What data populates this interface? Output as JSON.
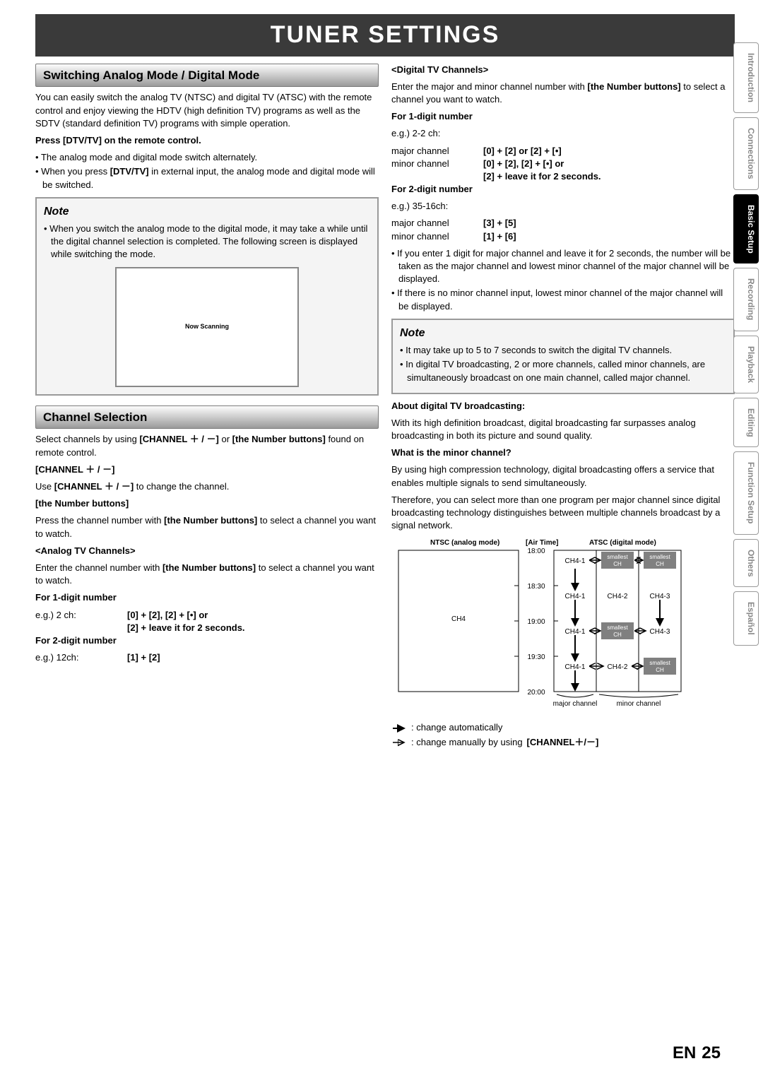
{
  "title": "TUNER SETTINGS",
  "page": {
    "lang": "EN",
    "num": "25"
  },
  "side_tabs": [
    {
      "label": "Introduction",
      "active": false
    },
    {
      "label": "Connections",
      "active": false
    },
    {
      "label": "Basic Setup",
      "active": true
    },
    {
      "label": "Recording",
      "active": false
    },
    {
      "label": "Playback",
      "active": false
    },
    {
      "label": "Editing",
      "active": false
    },
    {
      "label": "Function Setup",
      "active": false
    },
    {
      "label": "Others",
      "active": false
    },
    {
      "label": "Español",
      "active": false
    }
  ],
  "left": {
    "sec1_title": "Switching Analog Mode / Digital Mode",
    "sec1_intro": "You can easily switch the analog TV (NTSC) and digital TV (ATSC) with the remote control and enjoy viewing the HDTV (high definition TV) programs as well as the SDTV (standard definition TV) programs with simple operation.",
    "press_h": "Press [DTV/TV] on the remote control.",
    "press_b1": "The analog mode and digital mode switch alternately.",
    "press_b2_a": "When you press ",
    "press_b2_b": "[DTV/TV]",
    "press_b2_c": " in external input, the analog mode and digital mode will be switched.",
    "note1_title": "Note",
    "note1_text": "When you switch the analog mode to the digital mode, it may take a while until the digital channel selection is completed. The following screen is displayed while switching the mode.",
    "scan_label": "Now Scanning",
    "sec2_title": "Channel Selection",
    "sec2_intro_a": "Select channels by using ",
    "sec2_intro_b": "[CHANNEL ＋ / －]",
    "sec2_intro_c": " or ",
    "sec2_intro_d": "[the Number buttons]",
    "sec2_intro_e": " found on remote control.",
    "ch_h": "[CHANNEL ＋ / －]",
    "ch_t_a": "Use ",
    "ch_t_b": "[CHANNEL ＋ / －]",
    "ch_t_c": " to change the channel.",
    "nb_h": "[the Number buttons]",
    "nb_t_a": "Press the channel number with ",
    "nb_t_b": "[the Number buttons]",
    "nb_t_c": " to select a channel you want to watch.",
    "atv_h": "<Analog TV Channels>",
    "atv_t_a": "Enter the channel number with ",
    "atv_t_b": "[the Number buttons]",
    "atv_t_c": " to select a channel you want to watch.",
    "f1_h": "For 1-digit number",
    "f1_eg": "e.g.) 2 ch:",
    "f1_v1": "[0] + [2], [2] + [•] or",
    "f1_v2": "[2] + leave it for 2 seconds.",
    "f2_h": "For 2-digit number",
    "f2_eg": "e.g.) 12ch:",
    "f2_v": "[1] + [2]"
  },
  "right": {
    "dtv_h": "<Digital TV Channels>",
    "dtv_t_a": "Enter the major and minor channel number with ",
    "dtv_t_b": "[the Number buttons]",
    "dtv_t_c": " to select a channel you want to watch.",
    "d1_h": "For 1-digit number",
    "d1_eg": "e.g.) 2-2 ch:",
    "d1_maj_k": "major channel",
    "d1_maj_v": "[0] + [2] or [2] + [•]",
    "d1_min_k": "minor channel",
    "d1_min_v1": "[0] + [2], [2] + [•] or",
    "d1_min_v2": "[2] + leave it for 2 seconds.",
    "d2_h": "For 2-digit number",
    "d2_eg": "e.g.) 35-16ch:",
    "d2_maj_k": "major channel",
    "d2_maj_v": "[3] + [5]",
    "d2_min_k": "minor channel",
    "d2_min_v": "[1] + [6]",
    "db1": "If you enter 1 digit for major channel and leave it for 2 seconds, the number will be taken as the major channel and lowest minor channel of the major channel will be displayed.",
    "db2": "If there is no minor channel input, lowest minor channel of the major channel will be displayed.",
    "note2_title": "Note",
    "note2_b1": "It may take up to 5 to 7 seconds to switch the digital TV channels.",
    "note2_b2": "In digital TV broadcasting, 2 or more channels, called minor channels, are simultaneously broadcast on one main channel, called major channel.",
    "about_h": "About digital TV broadcasting:",
    "about_t": "With its high definition broadcast, digital broadcasting far surpasses analog broadcasting in both its picture and sound quality.",
    "minor_h": "What is the minor channel?",
    "minor_t1": "By using high compression technology, digital broadcasting offers a service that enables multiple signals to send simultaneously.",
    "minor_t2": "Therefore, you can select more than one program per major channel since digital broadcasting technology distinguishes between multiple channels broadcast by a signal network.",
    "diagram": {
      "ntsc_label": "NTSC (analog mode)",
      "airtime_label": "[Air Time]",
      "atsc_label": "ATSC (digital mode)",
      "times": [
        "18:00",
        "18:30",
        "19:00",
        "19:30",
        "20:00"
      ],
      "ch4": "CH4",
      "ch41": "CH4-1",
      "ch42": "CH4-2",
      "ch43": "CH4-3",
      "small_top": "smallest",
      "small_bot": "CH",
      "major_label": "major channel",
      "minor_label": "minor channel",
      "box_fill": "#808080",
      "box_text": "#ffffff",
      "line": "#000000",
      "font_size": 10
    },
    "legend1_a": ": change automatically",
    "legend2_a": ": change manually by using ",
    "legend2_b": "[CHANNEL＋/－]"
  }
}
